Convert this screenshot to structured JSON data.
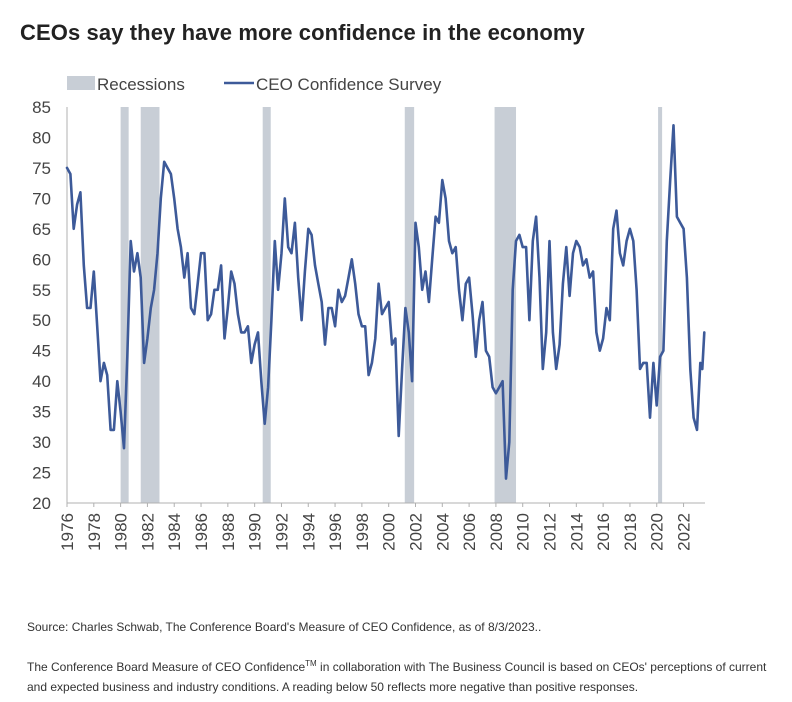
{
  "header": {
    "title": "CEOs say they have more confidence in the economy"
  },
  "footer": {
    "source": "Source: Charles Schwab, The Conference Board's Measure of CEO Confidence, as of 8/3/2023..",
    "note_pre": "The Conference Board Measure of CEO Confidence",
    "note_tm": "TM",
    "note_post": " in collaboration with The Business Council is based on CEOs' perceptions of current and expected business and industry conditions. A reading below 50 reflects more negative than positive responses."
  },
  "colors": {
    "line": "#3d5a99",
    "recession": "#c8ced6",
    "axis": "#b0b0b0",
    "text": "#333333"
  },
  "chart_data": {
    "type": "line",
    "title": "",
    "xlabel": "",
    "ylabel": "",
    "xlim": [
      1976,
      2023.6
    ],
    "ylim": [
      20,
      85
    ],
    "yticks": [
      20,
      25,
      30,
      35,
      40,
      45,
      50,
      55,
      60,
      65,
      70,
      75,
      80,
      85
    ],
    "xticks": [
      "1976",
      "1978",
      "1980",
      "1982",
      "1984",
      "1986",
      "1988",
      "1990",
      "1992",
      "1994",
      "1996",
      "1998",
      "2000",
      "2002",
      "2004",
      "2006",
      "2008",
      "2010",
      "2012",
      "2014",
      "2016",
      "2018",
      "2020",
      "2022"
    ],
    "legend": {
      "position": "top-left",
      "recessions_label": "Recessions",
      "series_label": "CEO Confidence Survey"
    },
    "recessions": [
      {
        "start": 1980.0,
        "end": 1980.6
      },
      {
        "start": 1981.5,
        "end": 1982.9
      },
      {
        "start": 1990.6,
        "end": 1991.2
      },
      {
        "start": 2001.2,
        "end": 2001.9
      },
      {
        "start": 2007.9,
        "end": 2009.5
      },
      {
        "start": 2020.1,
        "end": 2020.4
      }
    ],
    "series": [
      {
        "name": "CEO Confidence Survey",
        "points": [
          [
            1976.0,
            75
          ],
          [
            1976.25,
            74
          ],
          [
            1976.5,
            65
          ],
          [
            1976.75,
            69
          ],
          [
            1977.0,
            71
          ],
          [
            1977.25,
            59
          ],
          [
            1977.5,
            52
          ],
          [
            1977.75,
            52
          ],
          [
            1978.0,
            58
          ],
          [
            1978.25,
            49
          ],
          [
            1978.5,
            40
          ],
          [
            1978.75,
            43
          ],
          [
            1979.0,
            41
          ],
          [
            1979.25,
            32
          ],
          [
            1979.5,
            32
          ],
          [
            1979.75,
            40
          ],
          [
            1980.0,
            35
          ],
          [
            1980.25,
            29
          ],
          [
            1980.5,
            44
          ],
          [
            1980.75,
            63
          ],
          [
            1981.0,
            58
          ],
          [
            1981.25,
            61
          ],
          [
            1981.5,
            57
          ],
          [
            1981.75,
            43
          ],
          [
            1982.0,
            47
          ],
          [
            1982.25,
            52
          ],
          [
            1982.5,
            55
          ],
          [
            1982.75,
            61
          ],
          [
            1983.0,
            70
          ],
          [
            1983.25,
            76
          ],
          [
            1983.5,
            75
          ],
          [
            1983.75,
            74
          ],
          [
            1984.0,
            70
          ],
          [
            1984.25,
            65
          ],
          [
            1984.5,
            62
          ],
          [
            1984.75,
            57
          ],
          [
            1985.0,
            61
          ],
          [
            1985.25,
            52
          ],
          [
            1985.5,
            51
          ],
          [
            1985.75,
            56
          ],
          [
            1986.0,
            61
          ],
          [
            1986.25,
            61
          ],
          [
            1986.5,
            50
          ],
          [
            1986.75,
            51
          ],
          [
            1987.0,
            55
          ],
          [
            1987.25,
            55
          ],
          [
            1987.5,
            59
          ],
          [
            1987.75,
            47
          ],
          [
            1988.0,
            52
          ],
          [
            1988.25,
            58
          ],
          [
            1988.5,
            56
          ],
          [
            1988.75,
            51
          ],
          [
            1989.0,
            48
          ],
          [
            1989.25,
            48
          ],
          [
            1989.5,
            49
          ],
          [
            1989.75,
            43
          ],
          [
            1990.0,
            46
          ],
          [
            1990.25,
            48
          ],
          [
            1990.5,
            40
          ],
          [
            1990.75,
            33
          ],
          [
            1991.0,
            39
          ],
          [
            1991.25,
            50
          ],
          [
            1991.5,
            63
          ],
          [
            1991.75,
            55
          ],
          [
            1992.0,
            61
          ],
          [
            1992.25,
            70
          ],
          [
            1992.5,
            62
          ],
          [
            1992.75,
            61
          ],
          [
            1993.0,
            66
          ],
          [
            1993.25,
            57
          ],
          [
            1993.5,
            50
          ],
          [
            1993.75,
            58
          ],
          [
            1994.0,
            65
          ],
          [
            1994.25,
            64
          ],
          [
            1994.5,
            59
          ],
          [
            1994.75,
            56
          ],
          [
            1995.0,
            53
          ],
          [
            1995.25,
            46
          ],
          [
            1995.5,
            52
          ],
          [
            1995.75,
            52
          ],
          [
            1996.0,
            49
          ],
          [
            1996.25,
            55
          ],
          [
            1996.5,
            53
          ],
          [
            1996.75,
            54
          ],
          [
            1997.0,
            57
          ],
          [
            1997.25,
            60
          ],
          [
            1997.5,
            56
          ],
          [
            1997.75,
            51
          ],
          [
            1998.0,
            49
          ],
          [
            1998.25,
            49
          ],
          [
            1998.5,
            41
          ],
          [
            1998.75,
            43
          ],
          [
            1999.0,
            47
          ],
          [
            1999.25,
            56
          ],
          [
            1999.5,
            51
          ],
          [
            1999.75,
            52
          ],
          [
            2000.0,
            53
          ],
          [
            2000.25,
            46
          ],
          [
            2000.5,
            47
          ],
          [
            2000.75,
            31
          ],
          [
            2001.0,
            42
          ],
          [
            2001.25,
            52
          ],
          [
            2001.5,
            48
          ],
          [
            2001.75,
            40
          ],
          [
            2002.0,
            66
          ],
          [
            2002.25,
            62
          ],
          [
            2002.5,
            55
          ],
          [
            2002.75,
            58
          ],
          [
            2003.0,
            53
          ],
          [
            2003.25,
            60
          ],
          [
            2003.5,
            67
          ],
          [
            2003.75,
            66
          ],
          [
            2004.0,
            73
          ],
          [
            2004.25,
            70
          ],
          [
            2004.5,
            63
          ],
          [
            2004.75,
            61
          ],
          [
            2005.0,
            62
          ],
          [
            2005.25,
            55
          ],
          [
            2005.5,
            50
          ],
          [
            2005.75,
            56
          ],
          [
            2006.0,
            57
          ],
          [
            2006.25,
            51
          ],
          [
            2006.5,
            44
          ],
          [
            2006.75,
            50
          ],
          [
            2007.0,
            53
          ],
          [
            2007.25,
            45
          ],
          [
            2007.5,
            44
          ],
          [
            2007.75,
            39
          ],
          [
            2008.0,
            38
          ],
          [
            2008.25,
            39
          ],
          [
            2008.5,
            40
          ],
          [
            2008.75,
            24
          ],
          [
            2009.0,
            30
          ],
          [
            2009.25,
            55
          ],
          [
            2009.5,
            63
          ],
          [
            2009.75,
            64
          ],
          [
            2010.0,
            62
          ],
          [
            2010.25,
            62
          ],
          [
            2010.5,
            50
          ],
          [
            2010.75,
            63
          ],
          [
            2011.0,
            67
          ],
          [
            2011.25,
            57
          ],
          [
            2011.5,
            42
          ],
          [
            2011.75,
            48
          ],
          [
            2012.0,
            63
          ],
          [
            2012.25,
            48
          ],
          [
            2012.5,
            42
          ],
          [
            2012.75,
            46
          ],
          [
            2013.0,
            56
          ],
          [
            2013.25,
            62
          ],
          [
            2013.5,
            54
          ],
          [
            2013.75,
            61
          ],
          [
            2014.0,
            63
          ],
          [
            2014.25,
            62
          ],
          [
            2014.5,
            59
          ],
          [
            2014.75,
            60
          ],
          [
            2015.0,
            57
          ],
          [
            2015.25,
            58
          ],
          [
            2015.5,
            48
          ],
          [
            2015.75,
            45
          ],
          [
            2016.0,
            47
          ],
          [
            2016.25,
            52
          ],
          [
            2016.5,
            50
          ],
          [
            2016.75,
            65
          ],
          [
            2017.0,
            68
          ],
          [
            2017.25,
            61
          ],
          [
            2017.5,
            59
          ],
          [
            2017.75,
            63
          ],
          [
            2018.0,
            65
          ],
          [
            2018.25,
            63
          ],
          [
            2018.5,
            55
          ],
          [
            2018.75,
            42
          ],
          [
            2019.0,
            43
          ],
          [
            2019.25,
            43
          ],
          [
            2019.5,
            34
          ],
          [
            2019.75,
            43
          ],
          [
            2020.0,
            36
          ],
          [
            2020.25,
            44
          ],
          [
            2020.5,
            45
          ],
          [
            2020.75,
            63
          ],
          [
            2021.0,
            73
          ],
          [
            2021.25,
            82
          ],
          [
            2021.5,
            67
          ],
          [
            2021.75,
            66
          ],
          [
            2022.0,
            65
          ],
          [
            2022.25,
            57
          ],
          [
            2022.5,
            42
          ],
          [
            2022.75,
            34
          ],
          [
            2023.0,
            32
          ],
          [
            2023.25,
            43
          ],
          [
            2023.4,
            42
          ],
          [
            2023.55,
            48
          ]
        ]
      }
    ]
  }
}
